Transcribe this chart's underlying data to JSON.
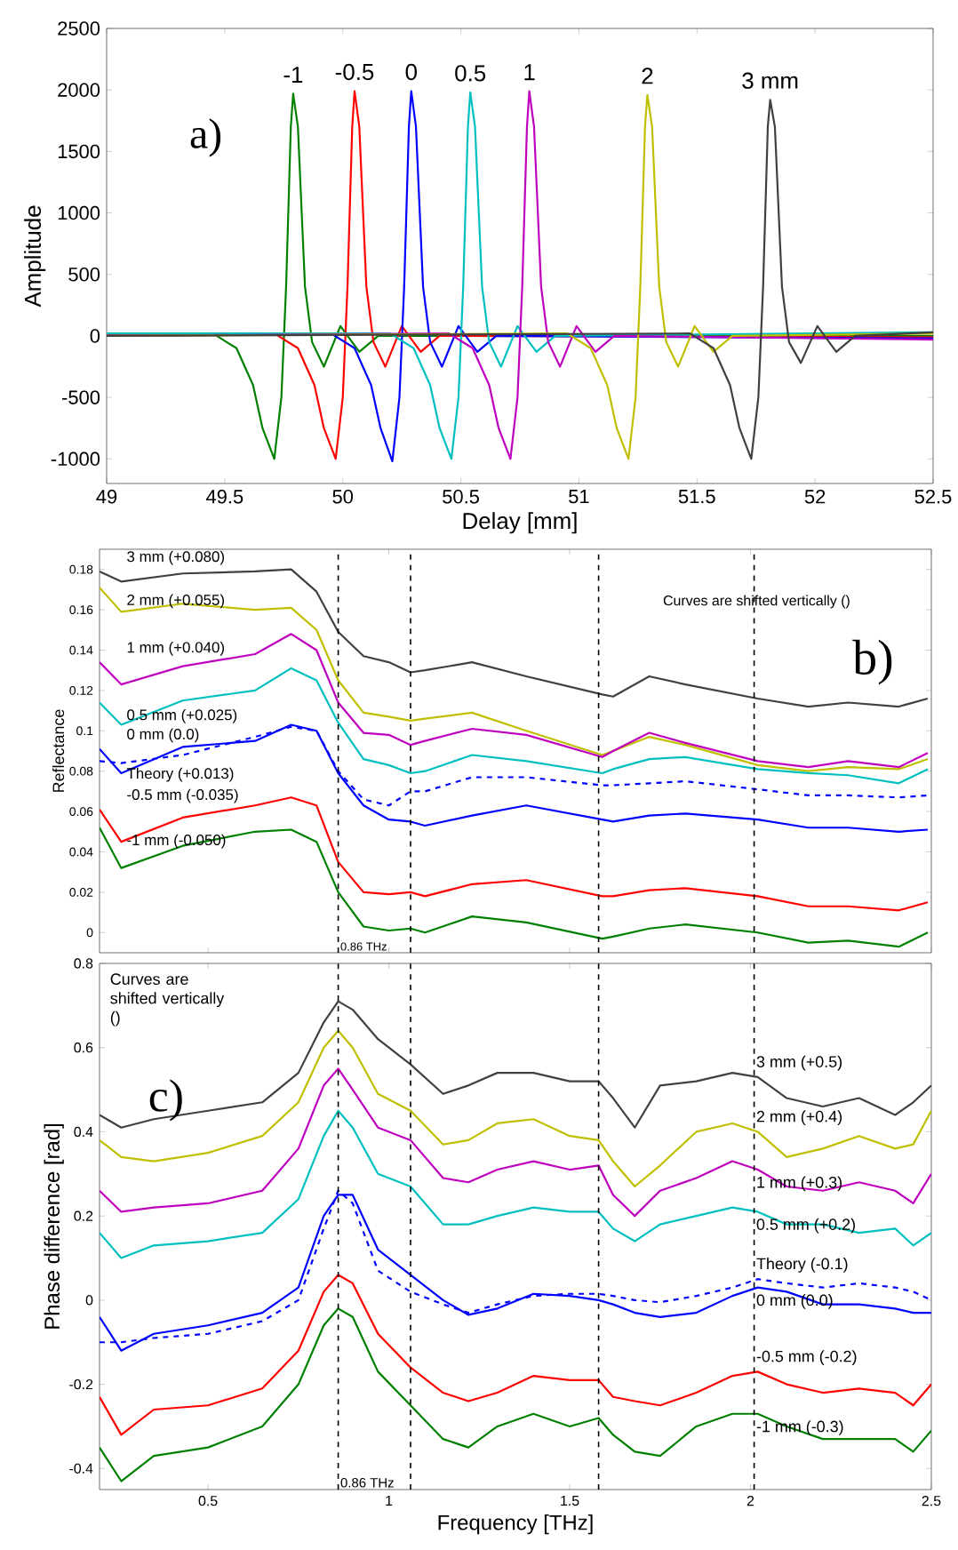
{
  "chart_data": [
    {
      "type": "line",
      "xlabel": "Delay [mm]",
      "ylabel": "Amplitude",
      "xlim": [
        49,
        52.5
      ],
      "ylim": [
        -1200,
        2500
      ],
      "xticks": [
        49,
        49.5,
        50,
        50.5,
        51,
        51.5,
        52,
        52.5
      ],
      "yticks": [
        -1000,
        -500,
        0,
        500,
        1000,
        1500,
        2000,
        2500
      ],
      "series": [
        {
          "color": "#008000",
          "x": [
            49,
            49.45,
            49.55,
            49.62,
            49.66,
            49.71,
            49.74,
            49.76,
            49.78,
            49.79,
            49.81,
            49.84,
            49.87,
            49.92,
            49.99,
            50.07,
            50.15,
            52.5
          ],
          "values": [
            20,
            20,
            -100,
            -400,
            -750,
            -1000,
            -500,
            400,
            1700,
            1970,
            1700,
            400,
            -50,
            -250,
            80,
            -130,
            0,
            0
          ]
        },
        {
          "color": "#ff0000",
          "x": [
            49,
            49.71,
            49.81,
            49.88,
            49.92,
            49.97,
            50.0,
            50.02,
            50.04,
            50.05,
            50.07,
            50.1,
            50.13,
            50.18,
            50.25,
            50.33,
            50.41,
            52.5
          ],
          "values": [
            10,
            20,
            -100,
            -400,
            -750,
            -1000,
            -500,
            400,
            1700,
            1990,
            1700,
            400,
            -50,
            -250,
            80,
            -130,
            0,
            -10
          ]
        },
        {
          "color": "#0000ff",
          "x": [
            49,
            49.95,
            50.05,
            50.12,
            50.16,
            50.21,
            50.24,
            50.26,
            50.28,
            50.29,
            50.31,
            50.34,
            50.37,
            50.42,
            50.49,
            50.57,
            50.65,
            52.5
          ],
          "values": [
            20,
            20,
            -100,
            -400,
            -750,
            -1020,
            -500,
            400,
            1700,
            1990,
            1700,
            400,
            -50,
            -250,
            80,
            -130,
            0,
            -20
          ]
        },
        {
          "color": "#00bfbf",
          "x": [
            49,
            50.2,
            50.3,
            50.37,
            50.41,
            50.46,
            50.49,
            50.51,
            50.53,
            50.54,
            50.56,
            50.59,
            50.62,
            50.67,
            50.74,
            50.82,
            50.9,
            52.5
          ],
          "values": [
            20,
            20,
            -100,
            -400,
            -750,
            -1000,
            -500,
            400,
            1700,
            1980,
            1700,
            400,
            -50,
            -250,
            80,
            -130,
            0,
            30
          ]
        },
        {
          "color": "#bf00bf",
          "x": [
            49,
            50.45,
            50.55,
            50.62,
            50.66,
            50.71,
            50.74,
            50.76,
            50.78,
            50.79,
            50.81,
            50.84,
            50.87,
            50.92,
            50.99,
            51.07,
            51.15,
            52.5
          ],
          "values": [
            0,
            20,
            -100,
            -400,
            -750,
            -1000,
            -500,
            400,
            1700,
            1990,
            1700,
            400,
            -50,
            -250,
            80,
            -130,
            0,
            -30
          ]
        },
        {
          "color": "#bfbf00",
          "x": [
            49,
            50.95,
            51.05,
            51.12,
            51.16,
            51.21,
            51.24,
            51.26,
            51.28,
            51.29,
            51.31,
            51.34,
            51.37,
            51.42,
            51.49,
            51.57,
            51.65,
            52.5
          ],
          "values": [
            0,
            20,
            -100,
            -400,
            -750,
            -1000,
            -500,
            400,
            1700,
            1960,
            1700,
            400,
            -50,
            -250,
            80,
            -130,
            0,
            20
          ]
        },
        {
          "color": "#404040",
          "x": [
            49,
            51.47,
            51.57,
            51.64,
            51.68,
            51.73,
            51.76,
            51.78,
            51.8,
            51.81,
            51.83,
            51.86,
            51.89,
            51.94,
            52.01,
            52.09,
            52.17,
            52.5
          ],
          "values": [
            0,
            20,
            -100,
            -400,
            -750,
            -1000,
            -500,
            400,
            1700,
            1920,
            1700,
            400,
            -50,
            -220,
            80,
            -130,
            0,
            30
          ]
        }
      ],
      "annotations": [
        "a)",
        {
          "text": "-1",
          "x": 49.79,
          "y": 1970
        },
        {
          "text": "-0.5",
          "x": 50.05,
          "y": 1990
        },
        {
          "text": "0",
          "x": 50.29,
          "y": 1990
        },
        {
          "text": "0.5",
          "x": 50.54,
          "y": 1980
        },
        {
          "text": "1",
          "x": 50.79,
          "y": 1990
        },
        {
          "text": "2",
          "x": 51.29,
          "y": 1960
        },
        {
          "text": "3 mm",
          "x": 51.81,
          "y": 1920
        }
      ]
    },
    {
      "type": "line",
      "ylabel": "Reflectance",
      "xlim": [
        0.2,
        2.5
      ],
      "ylim": [
        -0.01,
        0.19
      ],
      "tick_labels": "y",
      "xticks": [
        0.5,
        1,
        1.5,
        2,
        2.5
      ],
      "yticks": [
        0,
        0.02,
        0.04,
        0.06,
        0.08,
        0.1,
        0.12,
        0.14,
        0.16,
        0.18
      ],
      "x": [
        0.2,
        0.26,
        0.43,
        0.63,
        0.73,
        0.8,
        0.86,
        0.93,
        1.0,
        1.06,
        1.1,
        1.23,
        1.38,
        1.59,
        1.62,
        1.72,
        1.82,
        2.02,
        2.16,
        2.27,
        2.41,
        2.49
      ],
      "series": [
        {
          "name": "3 mm (+0.080)",
          "color": "#404040",
          "values": [
            0.179,
            0.174,
            0.178,
            0.179,
            0.18,
            0.169,
            0.149,
            0.137,
            0.134,
            0.129,
            0.13,
            0.134,
            0.127,
            0.118,
            0.117,
            0.127,
            0.123,
            0.116,
            0.112,
            0.114,
            0.112,
            0.116
          ]
        },
        {
          "name": "2 mm (+0.055)",
          "color": "#bfbf00",
          "values": [
            0.171,
            0.159,
            0.163,
            0.16,
            0.161,
            0.15,
            0.125,
            0.109,
            0.107,
            0.105,
            0.106,
            0.109,
            0.1,
            0.088,
            0.09,
            0.097,
            0.093,
            0.083,
            0.08,
            0.082,
            0.081,
            0.086
          ]
        },
        {
          "name": "1 mm (+0.040)",
          "color": "#bf00bf",
          "values": [
            0.134,
            0.123,
            0.132,
            0.138,
            0.148,
            0.14,
            0.114,
            0.099,
            0.098,
            0.093,
            0.095,
            0.101,
            0.098,
            0.087,
            0.09,
            0.099,
            0.094,
            0.085,
            0.082,
            0.085,
            0.082,
            0.089
          ]
        },
        {
          "name": "0.5 mm (+0.025)",
          "color": "#00bfbf",
          "values": [
            0.114,
            0.103,
            0.115,
            0.12,
            0.131,
            0.125,
            0.104,
            0.086,
            0.083,
            0.079,
            0.08,
            0.088,
            0.085,
            0.079,
            0.081,
            0.086,
            0.087,
            0.081,
            0.079,
            0.078,
            0.074,
            0.081
          ]
        },
        {
          "name": "0 mm (0.0)",
          "color": "#0000ff",
          "values": [
            0.091,
            0.079,
            0.092,
            0.095,
            0.103,
            0.1,
            0.079,
            0.063,
            0.056,
            0.055,
            0.053,
            0.058,
            0.063,
            0.056,
            0.055,
            0.058,
            0.059,
            0.056,
            0.052,
            0.052,
            0.05,
            0.051
          ]
        },
        {
          "name": "Theory (+0.013)",
          "color": "#0000ff",
          "line_style": "dashed",
          "values": [
            0.085,
            0.084,
            0.088,
            0.097,
            0.102,
            0.1,
            0.08,
            0.066,
            0.063,
            0.07,
            0.07,
            0.077,
            0.077,
            0.073,
            0.073,
            0.074,
            0.075,
            0.071,
            0.068,
            0.068,
            0.067,
            0.068
          ]
        },
        {
          "name": "-0.5 mm (-0.035)",
          "color": "#ff0000",
          "values": [
            0.061,
            0.045,
            0.057,
            0.063,
            0.067,
            0.063,
            0.035,
            0.02,
            0.019,
            0.02,
            0.018,
            0.024,
            0.026,
            0.018,
            0.018,
            0.021,
            0.022,
            0.018,
            0.013,
            0.013,
            0.011,
            0.015
          ]
        },
        {
          "name": "-1 mm (-0.050)",
          "color": "#008000",
          "values": [
            0.052,
            0.032,
            0.043,
            0.05,
            0.051,
            0.045,
            0.02,
            0.003,
            0.001,
            0.002,
            0.0,
            0.008,
            0.005,
            -0.003,
            -0.002,
            0.002,
            0.004,
            0.0,
            -0.005,
            -0.004,
            -0.007,
            0.0
          ]
        }
      ],
      "ref_lines": [
        {
          "axis": "x",
          "value": 0.86,
          "label": "0.86 THz",
          "line_style": "dashed"
        },
        {
          "axis": "x",
          "value": 1.06,
          "line_style": "dashed"
        },
        {
          "axis": "x",
          "value": 1.58,
          "line_style": "dashed"
        },
        {
          "axis": "x",
          "value": 2.01,
          "line_style": "dashed"
        }
      ],
      "annotations": [
        "Curves are shifted vertically ()",
        "b)"
      ]
    },
    {
      "type": "line",
      "xlabel": "Frequency [THz]",
      "ylabel": "Phase difference [rad]",
      "xlim": [
        0.2,
        2.5
      ],
      "ylim": [
        -0.45,
        0.8
      ],
      "xticks": [
        0.5,
        1,
        1.5,
        2,
        2.5
      ],
      "yticks": [
        -0.4,
        -0.2,
        0,
        0.2,
        0.4,
        0.6,
        0.8
      ],
      "x": [
        0.2,
        0.26,
        0.35,
        0.5,
        0.65,
        0.75,
        0.82,
        0.86,
        0.9,
        0.97,
        1.06,
        1.15,
        1.22,
        1.3,
        1.4,
        1.5,
        1.58,
        1.62,
        1.68,
        1.75,
        1.85,
        1.95,
        2.02,
        2.1,
        2.2,
        2.3,
        2.4,
        2.45,
        2.5
      ],
      "series": [
        {
          "name": "3 mm (+0.5)",
          "color": "#404040",
          "values": [
            0.44,
            0.41,
            0.43,
            0.45,
            0.47,
            0.54,
            0.66,
            0.71,
            0.69,
            0.62,
            0.56,
            0.49,
            0.51,
            0.54,
            0.54,
            0.52,
            0.52,
            0.48,
            0.41,
            0.51,
            0.52,
            0.54,
            0.53,
            0.48,
            0.46,
            0.48,
            0.44,
            0.47,
            0.51
          ]
        },
        {
          "name": "2 mm (+0.4)",
          "color": "#bfbf00",
          "values": [
            0.38,
            0.34,
            0.33,
            0.35,
            0.39,
            0.47,
            0.6,
            0.64,
            0.6,
            0.49,
            0.45,
            0.37,
            0.38,
            0.42,
            0.43,
            0.39,
            0.38,
            0.33,
            0.27,
            0.32,
            0.4,
            0.42,
            0.4,
            0.34,
            0.36,
            0.39,
            0.36,
            0.37,
            0.45
          ]
        },
        {
          "name": "1 mm (+0.3)",
          "color": "#bf00bf",
          "values": [
            0.26,
            0.21,
            0.22,
            0.23,
            0.26,
            0.36,
            0.51,
            0.55,
            0.5,
            0.41,
            0.38,
            0.29,
            0.28,
            0.31,
            0.33,
            0.31,
            0.32,
            0.25,
            0.2,
            0.26,
            0.29,
            0.33,
            0.31,
            0.27,
            0.26,
            0.28,
            0.26,
            0.23,
            0.3
          ]
        },
        {
          "name": "0.5 mm (+0.2)",
          "color": "#00bfbf",
          "values": [
            0.16,
            0.1,
            0.13,
            0.14,
            0.16,
            0.24,
            0.39,
            0.45,
            0.41,
            0.3,
            0.27,
            0.18,
            0.18,
            0.2,
            0.22,
            0.21,
            0.21,
            0.17,
            0.14,
            0.18,
            0.2,
            0.22,
            0.21,
            0.18,
            0.18,
            0.16,
            0.17,
            0.13,
            0.16
          ]
        },
        {
          "name": "Theory (-0.1)",
          "color": "#0000ff",
          "line_style": "dashed",
          "values": [
            -0.1,
            -0.1,
            -0.09,
            -0.08,
            -0.05,
            0.0,
            0.17,
            0.26,
            0.23,
            0.07,
            0.02,
            -0.01,
            -0.03,
            -0.01,
            0.01,
            0.015,
            0.015,
            0.01,
            0.0,
            -0.005,
            0.01,
            0.03,
            0.05,
            0.04,
            0.03,
            0.04,
            0.03,
            0.02,
            0.0
          ]
        },
        {
          "name": "0 mm (0.0)",
          "color": "#0000ff",
          "values": [
            -0.04,
            -0.12,
            -0.08,
            -0.06,
            -0.03,
            0.03,
            0.2,
            0.25,
            0.25,
            0.12,
            0.06,
            0.0,
            -0.035,
            -0.02,
            0.015,
            0.01,
            0.0,
            -0.01,
            -0.03,
            -0.04,
            -0.03,
            0.01,
            0.03,
            0.02,
            -0.01,
            -0.01,
            -0.02,
            -0.03,
            -0.03
          ]
        },
        {
          "name": "-0.5 mm (-0.2)",
          "color": "#ff0000",
          "values": [
            -0.23,
            -0.32,
            -0.26,
            -0.25,
            -0.21,
            -0.12,
            0.02,
            0.06,
            0.04,
            -0.08,
            -0.16,
            -0.22,
            -0.24,
            -0.22,
            -0.18,
            -0.19,
            -0.19,
            -0.23,
            -0.24,
            -0.25,
            -0.22,
            -0.18,
            -0.17,
            -0.2,
            -0.22,
            -0.21,
            -0.22,
            -0.25,
            -0.2
          ]
        },
        {
          "name": "-1 mm (-0.3)",
          "color": "#008000",
          "values": [
            -0.35,
            -0.43,
            -0.37,
            -0.35,
            -0.3,
            -0.2,
            -0.06,
            -0.02,
            -0.04,
            -0.17,
            -0.25,
            -0.33,
            -0.35,
            -0.3,
            -0.27,
            -0.3,
            -0.28,
            -0.32,
            -0.36,
            -0.37,
            -0.3,
            -0.27,
            -0.27,
            -0.3,
            -0.33,
            -0.33,
            -0.33,
            -0.36,
            -0.31
          ]
        }
      ],
      "ref_lines": [
        {
          "axis": "x",
          "value": 0.86,
          "label": "0.86 THz",
          "line_style": "dashed"
        },
        {
          "axis": "x",
          "value": 1.06,
          "line_style": "dashed"
        },
        {
          "axis": "x",
          "value": 1.58,
          "line_style": "dashed"
        },
        {
          "axis": "x",
          "value": 2.01,
          "line_style": "dashed"
        }
      ],
      "annotations": [
        "Curves are shifted vertically ()",
        "c)"
      ]
    }
  ]
}
